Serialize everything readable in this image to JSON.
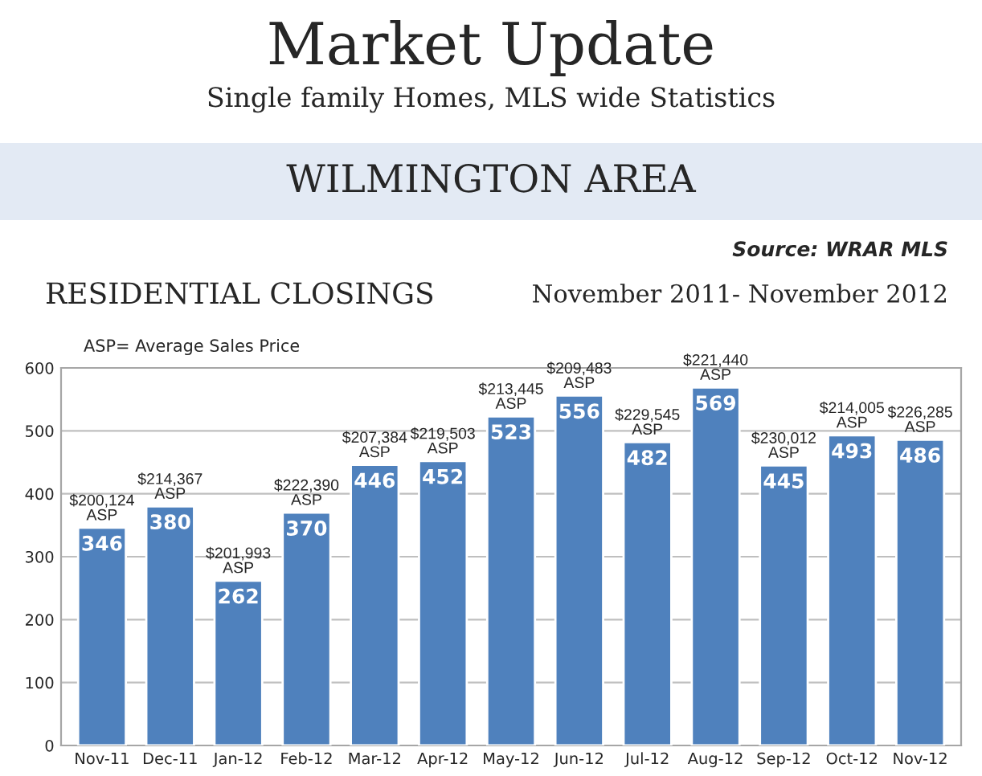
{
  "chart_data": {
    "type": "bar",
    "title": "Market Update",
    "subtitle": "Single family Homes, MLS wide Statistics",
    "annotations": [
      "WILMINGTON AREA",
      "Source: WRAR MLS",
      "RESIDENTIAL CLOSINGS",
      "November 2011- November 2012",
      "ASP= Average Sales Price",
      {
        "text": "$200,124\nASP",
        "x": "Nov-11",
        "y": 346
      },
      {
        "text": "$214,367\nASP",
        "x": "Dec-11",
        "y": 380
      },
      {
        "text": "$201,993\nASP",
        "x": "Jan-12",
        "y": 262
      },
      {
        "text": "$222,390\nASP",
        "x": "Feb-12",
        "y": 370
      },
      {
        "text": "$207,384\nASP",
        "x": "Mar-12",
        "y": 446
      },
      {
        "text": "$219,503\nASP",
        "x": "Apr-12",
        "y": 452
      },
      {
        "text": "$213,445\nASP",
        "x": "May-12",
        "y": 523
      },
      {
        "text": "$209,483\nASP",
        "x": "Jun-12",
        "y": 556
      },
      {
        "text": "$229,545\nASP",
        "x": "Jul-12",
        "y": 482
      },
      {
        "text": "$221,440\nASP",
        "x": "Aug-12",
        "y": 569
      },
      {
        "text": "$230,012\nASP",
        "x": "Sep-12",
        "y": 445
      },
      {
        "text": "$214,005\nASP",
        "x": "Oct-12",
        "y": 493
      },
      {
        "text": "$226,285\nASP",
        "x": "Nov-12",
        "y": 486
      }
    ],
    "categories": [
      "Nov-11",
      "Dec-11",
      "Jan-12",
      "Feb-12",
      "Mar-12",
      "Apr-12",
      "May-12",
      "Jun-12",
      "Jul-12",
      "Aug-12",
      "Sep-12",
      "Oct-12",
      "Nov-12"
    ],
    "values": [
      346,
      380,
      262,
      370,
      446,
      452,
      523,
      556,
      482,
      569,
      445,
      493,
      486
    ],
    "color": "#4f81bd",
    "data_labels": true,
    "ylim": [
      0,
      600
    ],
    "yticks": [
      0,
      100,
      200,
      300,
      400,
      500,
      600
    ],
    "grid": "y",
    "legend": false
  }
}
